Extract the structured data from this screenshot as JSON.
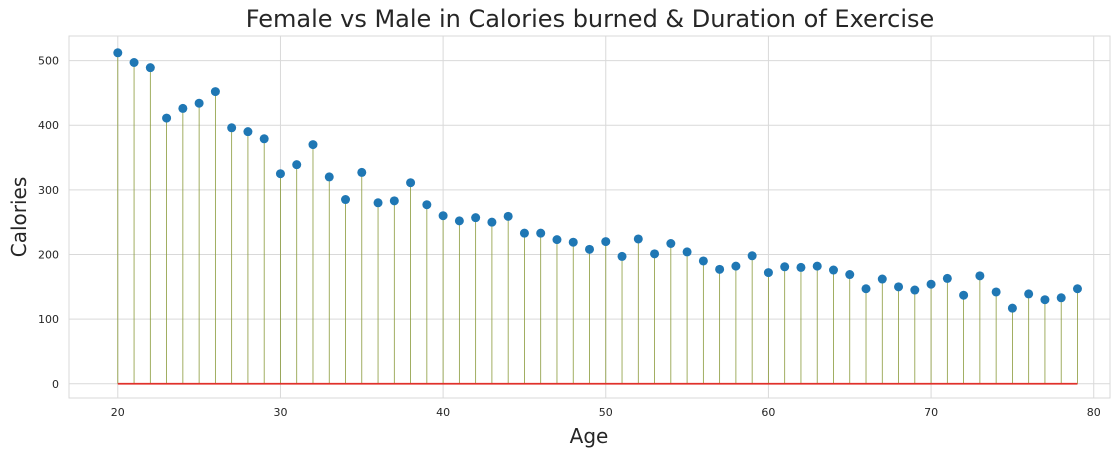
{
  "chart_data": {
    "type": "stem",
    "title": "Female vs Male in Calories burned & Duration of Exercise",
    "xlabel": "Age",
    "ylabel": "Calories",
    "xlim": [
      17,
      81
    ],
    "ylim": [
      -22,
      538
    ],
    "xticks": [
      20,
      30,
      40,
      50,
      60,
      70,
      80
    ],
    "yticks": [
      0,
      100,
      200,
      300,
      400,
      500
    ],
    "grid": true,
    "colors": {
      "marker": "#1f77b4",
      "stem": "#8a9a3b",
      "baseline": "#e0312b",
      "grid": "#d9d9d9"
    },
    "x": [
      20,
      21,
      22,
      23,
      24,
      25,
      26,
      27,
      28,
      29,
      30,
      31,
      32,
      33,
      34,
      35,
      36,
      37,
      38,
      39,
      40,
      41,
      42,
      43,
      44,
      45,
      46,
      47,
      48,
      49,
      50,
      51,
      52,
      53,
      54,
      55,
      56,
      57,
      58,
      59,
      60,
      61,
      62,
      63,
      64,
      65,
      66,
      67,
      68,
      69,
      70,
      71,
      72,
      73,
      74,
      75,
      76,
      77,
      78,
      79
    ],
    "y": [
      512,
      497,
      489,
      411,
      426,
      434,
      452,
      396,
      390,
      379,
      325,
      339,
      370,
      320,
      285,
      327,
      280,
      283,
      311,
      277,
      260,
      252,
      257,
      250,
      259,
      233,
      233,
      223,
      219,
      208,
      220,
      197,
      224,
      201,
      217,
      204,
      190,
      177,
      182,
      198,
      172,
      181,
      180,
      182,
      176,
      169,
      147,
      162,
      150,
      145,
      154,
      163,
      137,
      167,
      142,
      117,
      139,
      130,
      133,
      147
    ]
  }
}
